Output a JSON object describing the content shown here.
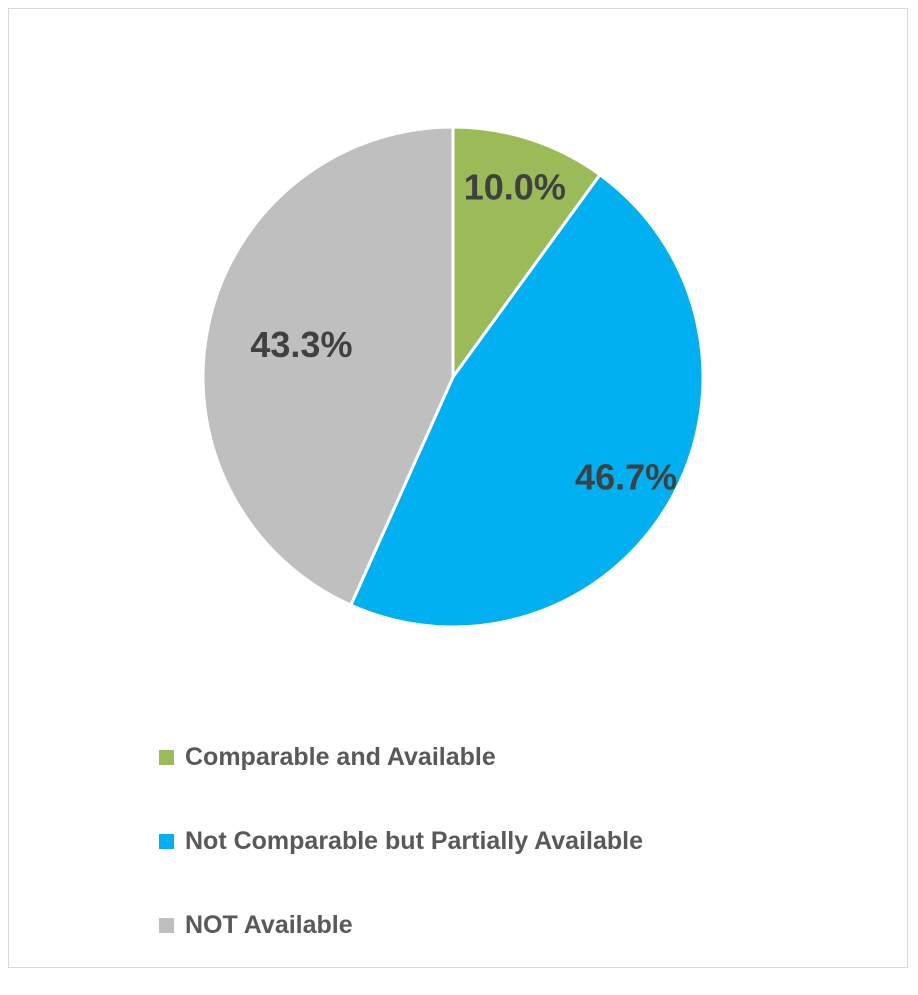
{
  "chart_data": {
    "type": "pie",
    "title": "",
    "slices": [
      {
        "name": "Comparable and Available",
        "value": 10.0,
        "label": "10.0%",
        "color": "#9bbb59"
      },
      {
        "name": "Not Comparable but Partially Available",
        "value": 46.7,
        "label": "46.7%",
        "color": "#00b0f0"
      },
      {
        "name": "NOT Available",
        "value": 43.3,
        "label": "43.3%",
        "color": "#bfbfbf"
      }
    ],
    "start_angle": "12 o'clock",
    "direction": "clockwise",
    "slice_border_color": "#ffffff",
    "label_color": "#404040",
    "legend": {
      "position": "bottom",
      "items": [
        "Comparable and Available",
        "Not Comparable but Partially Available",
        "NOT Available"
      ]
    }
  }
}
